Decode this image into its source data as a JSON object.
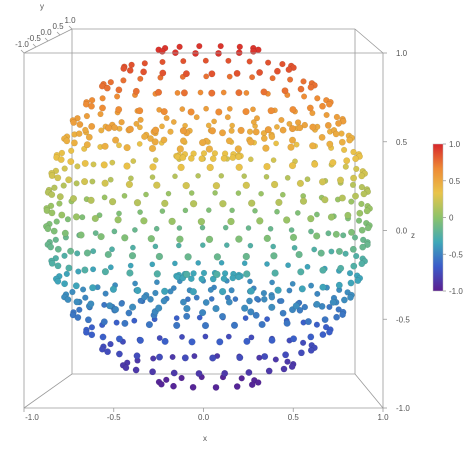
{
  "chart_data": {
    "type": "scatter",
    "title": "",
    "xlabel": "x",
    "ylabel": "y",
    "zlabel": "z",
    "x_range": [
      -1.0,
      1.0
    ],
    "y_range": [
      -1.0,
      1.0
    ],
    "z_range": [
      -1.0,
      1.0
    ],
    "x_ticks": [
      "-1.0",
      "-0.5",
      "0.0",
      "0.5",
      "1.0"
    ],
    "y_ticks": [
      "-1.0",
      "-0.5",
      "0.0",
      "0.5",
      "1.0"
    ],
    "z_ticks": [
      "-1.0",
      "-0.5",
      "0.0",
      "0.5",
      "1.0"
    ],
    "color_by": "z",
    "colorbar": {
      "ticks": [
        "1.0",
        "0.5",
        "0",
        "-0.5",
        "-1.0"
      ],
      "range": [
        -1.0,
        1.0
      ],
      "colors": [
        "#5b1d8f",
        "#3b5bc9",
        "#3fa8b8",
        "#8cc36b",
        "#e9c44a",
        "#ee8a35",
        "#d7262b"
      ]
    },
    "series": [
      {
        "rings": [
          {
            "z": 0.95,
            "r": 0.31,
            "n": 14
          },
          {
            "z": 0.85,
            "r": 0.53,
            "n": 22
          },
          {
            "z": 0.75,
            "r": 0.66,
            "n": 26
          },
          {
            "z": 0.65,
            "r": 0.76,
            "n": 30
          },
          {
            "z": 0.55,
            "r": 0.84,
            "n": 32
          },
          {
            "z": 0.45,
            "r": 0.89,
            "n": 34
          },
          {
            "z": 0.35,
            "r": 0.94,
            "n": 36
          },
          {
            "z": 0.25,
            "r": 0.97,
            "n": 36
          },
          {
            "z": 0.15,
            "r": 0.99,
            "n": 38
          },
          {
            "z": 0.05,
            "r": 1.0,
            "n": 38
          },
          {
            "z": -0.05,
            "r": 1.0,
            "n": 38
          },
          {
            "z": -0.15,
            "r": 0.99,
            "n": 38
          },
          {
            "z": -0.25,
            "r": 0.97,
            "n": 36
          },
          {
            "z": -0.35,
            "r": 0.94,
            "n": 36
          },
          {
            "z": -0.45,
            "r": 0.89,
            "n": 34
          },
          {
            "z": -0.55,
            "r": 0.84,
            "n": 32
          },
          {
            "z": -0.65,
            "r": 0.76,
            "n": 30
          },
          {
            "z": -0.75,
            "r": 0.66,
            "n": 26
          },
          {
            "z": -0.85,
            "r": 0.53,
            "n": 22
          },
          {
            "z": -0.95,
            "r": 0.31,
            "n": 14
          }
        ],
        "radial_groups": [
          {
            "z_sign": 1,
            "r_fractions": [
              0.2,
              0.4,
              0.6,
              0.8
            ],
            "n": 18
          },
          {
            "z_sign": -1,
            "r_fractions": [
              0.2,
              0.4,
              0.6,
              0.8
            ],
            "n": 18
          }
        ]
      }
    ]
  }
}
